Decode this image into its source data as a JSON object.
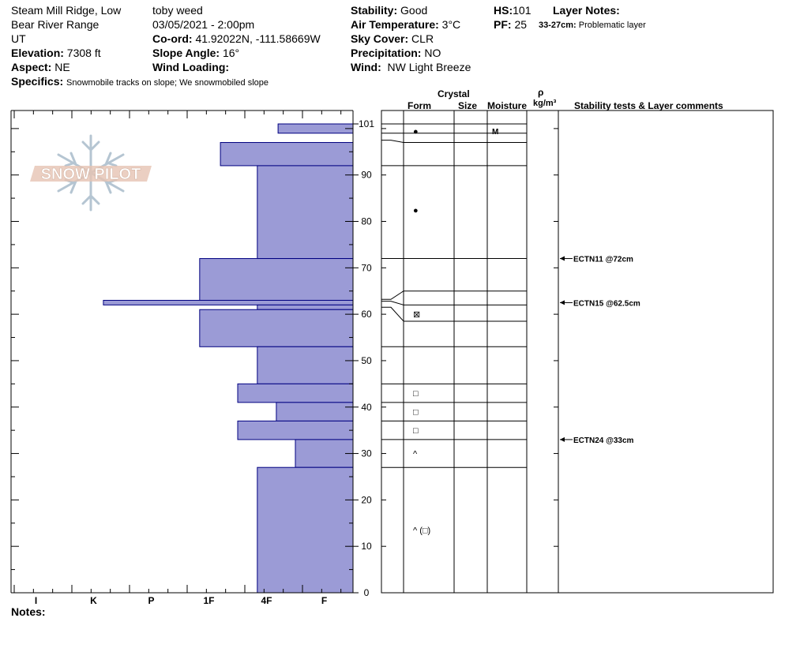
{
  "header": {
    "location": "Steam Mill Ridge, Low",
    "range": "Bear River Range",
    "state": "UT",
    "elevation_label": "Elevation:",
    "elevation": "7308 ft",
    "aspect_label": "Aspect:",
    "aspect": "NE",
    "specifics_label": "Specifics:",
    "specifics": "Snowmobile tracks on slope; We snowmobiled slope",
    "observer": "toby weed",
    "datetime": "03/05/2021 - 2:00pm",
    "coord_label": "Co-ord:",
    "coord": "41.92022N, -111.58669W",
    "slope_label": "Slope Angle:",
    "slope": "16°",
    "wind_loading_label": "Wind Loading:",
    "wind_loading": "",
    "stability_label": "Stability:",
    "stability": "Good",
    "air_temp_label": "Air Temperature:",
    "air_temp": "3°C",
    "sky_label": "Sky Cover:",
    "sky": "CLR",
    "precip_label": "Precipitation:",
    "precip": "NO",
    "wind_label": "Wind:",
    "wind": "NW Light Breeze",
    "hs_label": "HS:",
    "hs": "101",
    "pf_label": "PF:",
    "pf": "25",
    "layer_notes_label": "Layer Notes:",
    "layer_note_range": "33-27cm:",
    "layer_note_text": "Problematic layer"
  },
  "logo_text": "SNOW PILOT",
  "notes_label": "Notes:",
  "columns": {
    "crystal": "Crystal",
    "form": "Form",
    "size": "Size",
    "moisture": "Moisture",
    "rho": "ρ",
    "density_unit": "kg/m³",
    "stability": "Stability tests & Layer comments"
  },
  "colors": {
    "hardness_fill": "#9b9bd6",
    "hardness_stroke": "#000080"
  },
  "chart_data": {
    "type": "bar",
    "orientation": "horizontal",
    "x_categories": [
      "I",
      "K",
      "P",
      "1F",
      "4F",
      "F"
    ],
    "ylim": [
      0,
      101
    ],
    "y_ticks": [
      0,
      10,
      20,
      30,
      40,
      50,
      60,
      70,
      80,
      90,
      101
    ],
    "layers": [
      {
        "top": 101,
        "bottom": 99,
        "hardness": 1.3
      },
      {
        "top": 97,
        "bottom": 92,
        "hardness": 2.3
      },
      {
        "top": 92,
        "bottom": 72,
        "hardness": 1.66
      },
      {
        "top": 72,
        "bottom": 63,
        "hardness": 2.66
      },
      {
        "top": 63,
        "bottom": 62,
        "hardness": 4.33
      },
      {
        "top": 62,
        "bottom": 61,
        "hardness": 1.66
      },
      {
        "top": 61,
        "bottom": 53,
        "hardness": 2.66
      },
      {
        "top": 53,
        "bottom": 45,
        "hardness": 1.66
      },
      {
        "top": 45,
        "bottom": 41,
        "hardness": 2.0
      },
      {
        "top": 41,
        "bottom": 37,
        "hardness": 1.33
      },
      {
        "top": 37,
        "bottom": 33,
        "hardness": 2.0
      },
      {
        "top": 33,
        "bottom": 27,
        "hardness": 1.0
      },
      {
        "top": 27,
        "bottom": 0,
        "hardness": 1.66
      }
    ],
    "boundaries": [
      101,
      99,
      97,
      92,
      72,
      65,
      62,
      58.5,
      53,
      45,
      41,
      37,
      33,
      27
    ],
    "forms": [
      {
        "depth": 99.5,
        "symbol": "●"
      },
      {
        "depth": 82.5,
        "symbol": "●"
      },
      {
        "depth": 60,
        "symbol": "⊠"
      },
      {
        "depth": 43,
        "symbol": "□"
      },
      {
        "depth": 39,
        "symbol": "□"
      },
      {
        "depth": 35,
        "symbol": "□"
      },
      {
        "depth": 30,
        "symbol": "^"
      },
      {
        "depth": 13.5,
        "symbol": "^ (□)"
      }
    ],
    "moisture": [
      {
        "depth": 99.5,
        "label": "M"
      }
    ],
    "stability_tests": [
      {
        "depth": 72,
        "label": "ECTN11 @72cm"
      },
      {
        "depth": 62.5,
        "label": "ECTN15 @62.5cm"
      },
      {
        "depth": 33,
        "label": "ECTN24 @33cm"
      }
    ]
  }
}
